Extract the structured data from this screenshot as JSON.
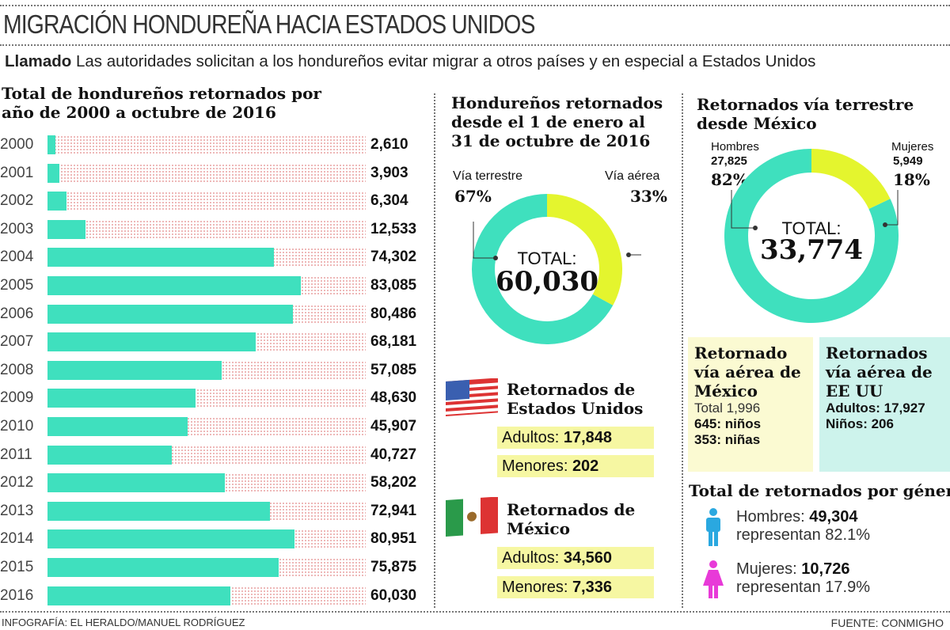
{
  "title": "MIGRACIÓN HONDUREÑA HACIA ESTADOS UNIDOS",
  "lead": {
    "bold": "Llamado",
    "text": "Las autoridades solicitan a los hondureños evitar migrar a otros países y en especial a Estados Unidos"
  },
  "colors": {
    "teal": "#3fe0be",
    "yellow": "#e4f52e",
    "men": "#2aa8e0",
    "women": "#e83ad8"
  },
  "chart_data": [
    {
      "type": "bar",
      "orientation": "horizontal",
      "title": "Total de hondureños retornados por año de 2000 a octubre de 2016",
      "categories": [
        "2000",
        "2001",
        "2002",
        "2003",
        "2004",
        "2005",
        "2006",
        "2007",
        "2008",
        "2009",
        "2010",
        "2011",
        "2012",
        "2013",
        "2014",
        "2015",
        "2016"
      ],
      "values": [
        2610,
        3903,
        6304,
        12533,
        74302,
        83085,
        80486,
        68181,
        57085,
        48630,
        45907,
        40727,
        58202,
        72941,
        80951,
        75875,
        60030
      ],
      "labels": [
        "2,610",
        "3,903",
        "6,304",
        "12,533",
        "74,302",
        "83,085",
        "80,486",
        "68,181",
        "57,085",
        "48,630",
        "45,907",
        "40,727",
        "58,202",
        "72,941",
        "80,951",
        "75,875",
        "60,030"
      ]
    },
    {
      "type": "pie",
      "donut": true,
      "title": "Hondureños retornados desde el 1 de enero al 31 de octubre de 2016",
      "slices": [
        {
          "name": "Vía terrestre",
          "value": 67,
          "label": "67%"
        },
        {
          "name": "Vía aérea",
          "value": 33,
          "label": "33%"
        }
      ],
      "center_label": "TOTAL:",
      "center_value": "60,030"
    },
    {
      "type": "pie",
      "donut": true,
      "title": "Retornados vía terrestre desde México",
      "slices": [
        {
          "name": "Hombres",
          "count": "27,825",
          "value": 82,
          "label": "82%"
        },
        {
          "name": "Mujeres",
          "count": "5,949",
          "value": 18,
          "label": "18%"
        }
      ],
      "center_label": "TOTAL:",
      "center_value": "33,774"
    }
  ],
  "usa": {
    "title": "Retornados de Estados Unidos",
    "adults_label": "Adultos:",
    "adults": "17,848",
    "minors_label": "Menores:",
    "minors": "202"
  },
  "mexico": {
    "title": "Retornados de México",
    "adults_label": "Adultos:",
    "adults": "34,560",
    "minors_label": "Menores:",
    "minors": "7,336"
  },
  "air_mexico": {
    "title": "Retornado vía aérea de México",
    "total": "Total 1,996",
    "boys": "645: niños",
    "girls": "353: niñas"
  },
  "air_usa": {
    "title": "Retornados vía aérea de EE UU",
    "adults": "Adultos: 17,927",
    "kids": "Niños: 206"
  },
  "gender": {
    "title": "Total de retornados por género",
    "men_label": "Hombres:",
    "men": "49,304",
    "men_pct": "representan 82.1%",
    "women_label": "Mujeres:",
    "women": "10,726",
    "women_pct": "representan 17.9%"
  },
  "credit": "INFOGRAFÍA: EL HERALDO/MANUEL RODRÍGUEZ",
  "source": "FUENTE: CONMIGHO"
}
